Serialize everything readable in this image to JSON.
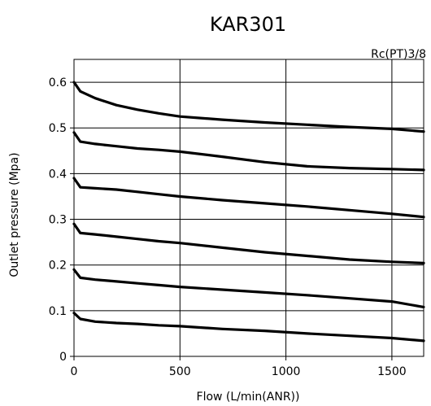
{
  "chart_data": {
    "type": "line",
    "title": "KAR301",
    "subtitle": "Rc(PT)3/8",
    "xlabel": "Flow (L/min(ANR))",
    "ylabel": "Outlet pressure (Mpa)",
    "xlim": [
      0,
      1650
    ],
    "ylim": [
      0,
      0.65
    ],
    "xticks": [
      0,
      500,
      1000,
      1500
    ],
    "xtick_labels": [
      "0",
      "500",
      "1000",
      "1500"
    ],
    "yticks": [
      0,
      0.1,
      0.2,
      0.3,
      0.4,
      0.5,
      0.6
    ],
    "ytick_labels": [
      "0",
      "0.1",
      "0.2",
      "0.3",
      "0.4",
      "0.5",
      "0.6"
    ],
    "grid": true,
    "line_color": "#000000",
    "series": [
      {
        "x": [
          0,
          30,
          100,
          200,
          300,
          400,
          500,
          700,
          900,
          1100,
          1300,
          1500,
          1650
        ],
        "values": [
          0.6,
          0.58,
          0.565,
          0.55,
          0.54,
          0.532,
          0.525,
          0.518,
          0.512,
          0.507,
          0.502,
          0.498,
          0.492
        ]
      },
      {
        "x": [
          0,
          30,
          100,
          200,
          300,
          400,
          500,
          700,
          900,
          1100,
          1300,
          1500,
          1650
        ],
        "values": [
          0.49,
          0.47,
          0.465,
          0.46,
          0.455,
          0.452,
          0.448,
          0.437,
          0.425,
          0.416,
          0.412,
          0.41,
          0.408
        ]
      },
      {
        "x": [
          0,
          30,
          100,
          200,
          300,
          400,
          500,
          700,
          900,
          1100,
          1300,
          1500,
          1650
        ],
        "values": [
          0.39,
          0.37,
          0.368,
          0.365,
          0.36,
          0.355,
          0.35,
          0.342,
          0.335,
          0.328,
          0.32,
          0.312,
          0.305
        ]
      },
      {
        "x": [
          0,
          30,
          100,
          200,
          300,
          400,
          500,
          700,
          900,
          1100,
          1300,
          1500,
          1650
        ],
        "values": [
          0.29,
          0.27,
          0.267,
          0.262,
          0.257,
          0.252,
          0.248,
          0.238,
          0.228,
          0.22,
          0.212,
          0.207,
          0.204
        ]
      },
      {
        "x": [
          0,
          30,
          100,
          200,
          300,
          400,
          500,
          700,
          900,
          1100,
          1300,
          1500,
          1650
        ],
        "values": [
          0.19,
          0.172,
          0.168,
          0.164,
          0.16,
          0.156,
          0.152,
          0.146,
          0.14,
          0.134,
          0.127,
          0.12,
          0.108
        ]
      },
      {
        "x": [
          0,
          30,
          100,
          200,
          300,
          400,
          500,
          700,
          900,
          1100,
          1300,
          1500,
          1650
        ],
        "values": [
          0.095,
          0.082,
          0.076,
          0.073,
          0.071,
          0.068,
          0.066,
          0.06,
          0.056,
          0.05,
          0.045,
          0.04,
          0.034
        ]
      }
    ]
  }
}
